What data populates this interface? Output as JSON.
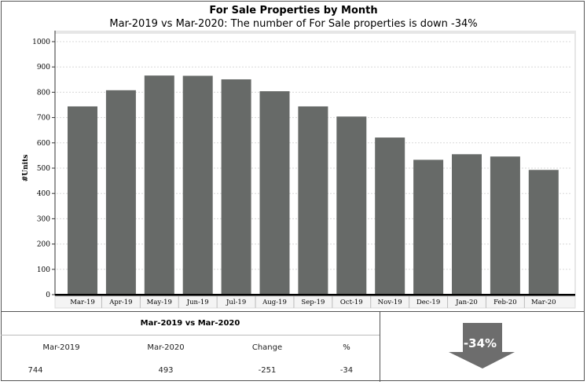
{
  "header": {
    "title": "For Sale Properties by Month",
    "subtitle": "Mar-2019 vs Mar-2020: The number of For Sale properties is down -34%"
  },
  "chart_data": {
    "type": "bar",
    "categories": [
      "Mar-19",
      "Apr-19",
      "May-19",
      "Jun-19",
      "Jul-19",
      "Aug-19",
      "Sep-19",
      "Oct-19",
      "Nov-19",
      "Dec-19",
      "Jan-20",
      "Feb-20",
      "Mar-20"
    ],
    "values": [
      744,
      808,
      866,
      865,
      851,
      804,
      744,
      704,
      621,
      533,
      555,
      546,
      493
    ],
    "ylabel": "#Units",
    "ylim": [
      0,
      1000
    ],
    "yticks": [
      0,
      100,
      200,
      300,
      400,
      500,
      600,
      700,
      800,
      900,
      1000
    ],
    "grid": true,
    "bar_color": "#676a68"
  },
  "stats": {
    "title": "Mar-2019 vs Mar-2020",
    "headers": [
      "Mar-2019",
      "Mar-2020",
      "Change",
      "%"
    ],
    "values": [
      "744",
      "493",
      "-251",
      "-34"
    ]
  },
  "indicator": {
    "text": "-34%",
    "icon": "down-arrow-icon",
    "color": "#6d6d6d"
  }
}
